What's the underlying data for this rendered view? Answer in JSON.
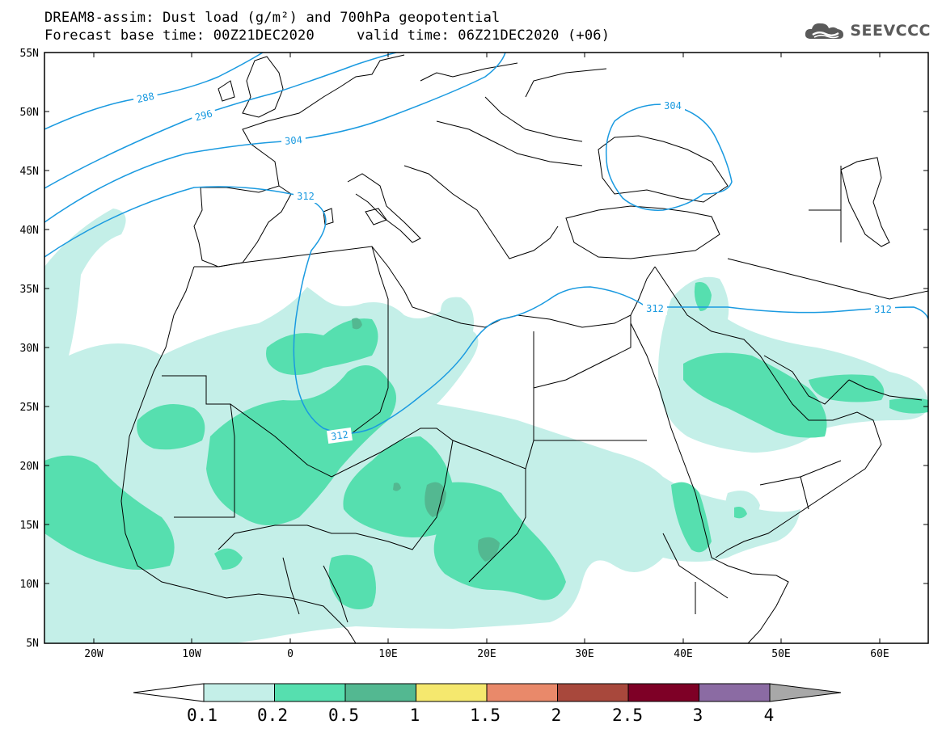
{
  "header": {
    "line1": "DREAM8-assim: Dust load (g/m²) and 700hPa geopotential",
    "line2": "Forecast base time: 00Z21DEC2020     valid time: 06Z21DEC2020 (+06)"
  },
  "logo": {
    "text": "SEEVCCC",
    "icon": "cloud-logo-icon"
  },
  "map": {
    "lat_labels": [
      "55N",
      "50N",
      "45N",
      "40N",
      "35N",
      "30N",
      "25N",
      "20N",
      "15N",
      "10N",
      "5N"
    ],
    "lon_labels": [
      "20W",
      "10W",
      "0",
      "10E",
      "20E",
      "30E",
      "40E",
      "50E",
      "60E"
    ],
    "contour_labels": [
      "288",
      "296",
      "304",
      "312",
      "312",
      "312",
      "304",
      "312"
    ],
    "contour_color": "#1a9ae0"
  },
  "colorbar": {
    "labels": [
      "0.1",
      "0.2",
      "0.5",
      "1",
      "1.5",
      "2",
      "2.5",
      "3",
      "4"
    ],
    "colors": [
      "#c4efe8",
      "#56dfaf",
      "#53b891",
      "#f5e86e",
      "#e9896a",
      "#a8483c",
      "#7e0026",
      "#8b6ba3"
    ]
  }
}
